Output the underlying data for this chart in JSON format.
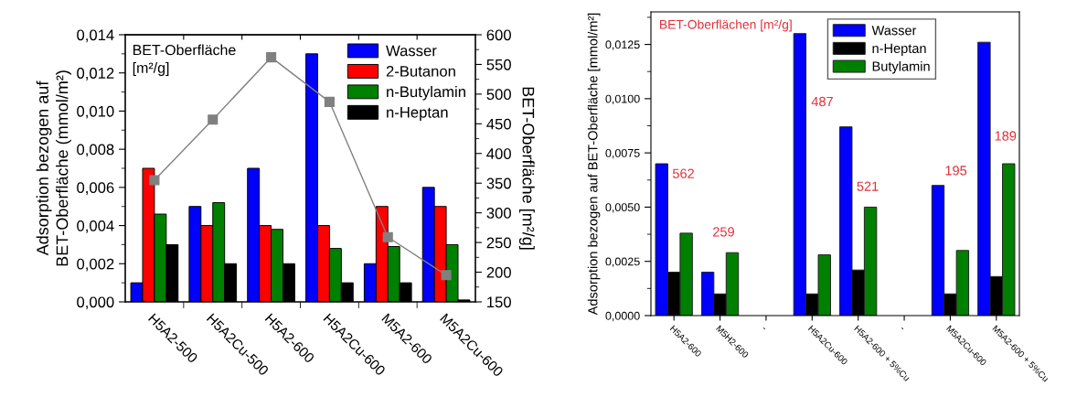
{
  "chart_data": [
    {
      "type": "bar",
      "categories": [
        "H5A2-500",
        "H5A2Cu-500",
        "H5A2-600",
        "H5A2Cu-600",
        "M5A2-600",
        "M5A2Cu-600"
      ],
      "ylabel": "Adsorption bezogen auf\nBET-Oberfläche (mmol/m²)",
      "y2label": "BET-Oberfläche [m²/g]",
      "ylim": [
        0,
        0.014
      ],
      "yticks": [
        {
          "value": 0,
          "label": "0,000"
        },
        {
          "value": 0.002,
          "label": "0,002"
        },
        {
          "value": 0.004,
          "label": "0,004"
        },
        {
          "value": 0.006,
          "label": "0,006"
        },
        {
          "value": 0.008,
          "label": "0,008"
        },
        {
          "value": 0.01,
          "label": "0,010"
        },
        {
          "value": 0.012,
          "label": "0,012"
        },
        {
          "value": 0.014,
          "label": "0,014"
        }
      ],
      "y2lim": [
        150,
        600
      ],
      "y2ticks": [
        150,
        200,
        250,
        300,
        350,
        400,
        450,
        500,
        550,
        600
      ],
      "series": [
        {
          "name": "Wasser",
          "color": "#0000ff",
          "values": [
            0.001,
            0.005,
            0.007,
            0.013,
            0.002,
            0.006
          ]
        },
        {
          "name": "2-Butanon",
          "color": "#ff0000",
          "values": [
            0.007,
            0.004,
            0.004,
            0.004,
            0.005,
            0.005
          ]
        },
        {
          "name": "n-Butylamin",
          "color": "#008000",
          "values": [
            0.0046,
            0.0052,
            0.0038,
            0.0028,
            0.0029,
            0.003
          ]
        },
        {
          "name": "n-Heptan",
          "color": "#000000",
          "values": [
            0.003,
            0.002,
            0.002,
            0.001,
            0.001,
            0.0001
          ]
        },
        {
          "type": "line",
          "axis": "y2",
          "color": "#808080",
          "values": [
            355,
            457,
            562,
            487,
            259,
            195
          ]
        }
      ],
      "marker": "square",
      "legend": "top right",
      "annotations": [
        "BET-Oberfläche\n[m²/g]"
      ]
    },
    {
      "type": "bar",
      "categories": [
        "H5A2-600",
        "M5H2-600",
        "-",
        "H5A2Cu-600",
        "H5A2-600 + 5%Cu",
        "-",
        "M5A2Cu-600",
        "M5A2-600 + 5%Cu"
      ],
      "ylabel": "Adsorption bezogen auf BET-Oberfläche [mmol/m²]",
      "ylim": [
        0,
        0.014
      ],
      "yticks": [
        {
          "value": 0,
          "label": "0,0000"
        },
        {
          "value": 0.0025,
          "label": "0,0025"
        },
        {
          "value": 0.005,
          "label": "0,0050"
        },
        {
          "value": 0.0075,
          "label": "0,0075"
        },
        {
          "value": 0.01,
          "label": "0,0100"
        },
        {
          "value": 0.0125,
          "label": "0,0125"
        }
      ],
      "series": [
        {
          "name": "Wasser",
          "color": "#0000ff",
          "values": [
            0.007,
            0.002,
            null,
            0.013,
            0.0087,
            null,
            0.006,
            0.0126
          ]
        },
        {
          "name": "n-Heptan",
          "color": "#000000",
          "values": [
            0.002,
            0.001,
            null,
            0.001,
            0.0021,
            null,
            0.001,
            0.0018
          ]
        },
        {
          "name": "Butylamin",
          "color": "#008000",
          "values": [
            0.0038,
            0.0029,
            null,
            0.0028,
            0.005,
            null,
            0.003,
            0.007
          ]
        }
      ],
      "legend": "top right",
      "annotations": [
        "BET-Oberflächen [m²/g]",
        "562",
        "259",
        "487",
        "521",
        "195",
        "189"
      ]
    }
  ]
}
